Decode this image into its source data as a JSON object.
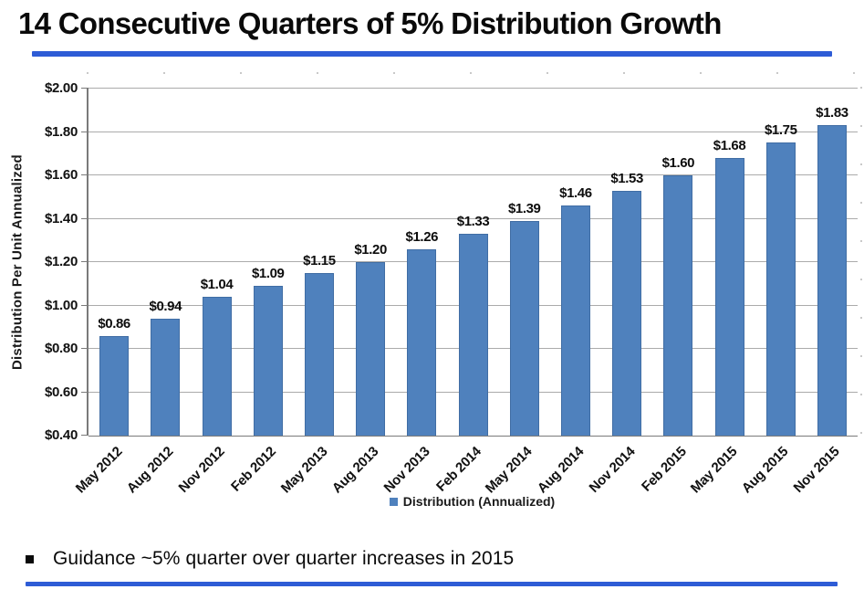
{
  "slide": {
    "title": "14 Consecutive Quarters of 5% Distribution Growth",
    "bullet": "Guidance ~5% quarter over quarter increases in 2015"
  },
  "colors": {
    "bar": "#4F81BD",
    "accent_rule": "#2E5CD6",
    "gridline": "#ABABAB",
    "axis": "#7A7A7A"
  },
  "chart_data": {
    "type": "bar",
    "title": "",
    "xlabel": "",
    "ylabel": "Distribution Per Unit Annualized",
    "categories": [
      "May 2012",
      "Aug 2012",
      "Nov 2012",
      "Feb 2012",
      "May 2013",
      "Aug 2013",
      "Nov 2013",
      "Feb 2014",
      "May 2014",
      "Aug 2014",
      "Nov 2014",
      "Feb 2015",
      "May 2015",
      "Aug 2015",
      "Nov 2015"
    ],
    "values": [
      0.86,
      0.94,
      1.04,
      1.09,
      1.15,
      1.2,
      1.26,
      1.33,
      1.39,
      1.46,
      1.53,
      1.6,
      1.68,
      1.75,
      1.83
    ],
    "value_labels": [
      "$0.86",
      "$0.94",
      "$1.04",
      "$1.09",
      "$1.15",
      "$1.20",
      "$1.26",
      "$1.33",
      "$1.39",
      "$1.46",
      "$1.53",
      "$1.60",
      "$1.68",
      "$1.75",
      "$1.83"
    ],
    "ylim": [
      0.4,
      2.0
    ],
    "ytick_step": 0.2,
    "ytick_labels": [
      "$0.40",
      "$0.60",
      "$0.80",
      "$1.00",
      "$1.20",
      "$1.40",
      "$1.60",
      "$1.80",
      "$2.00"
    ],
    "grid": true,
    "legend": [
      "Distribution (Annualized)"
    ],
    "legend_position": "bottom"
  }
}
